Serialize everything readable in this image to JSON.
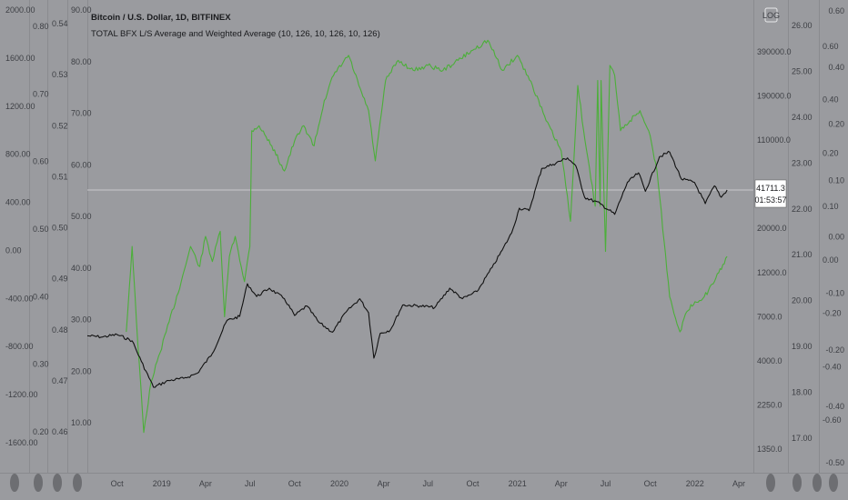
{
  "header": {
    "symbol_title": "Bitcoin / U.S. Dollar, 1D, BITFINEX",
    "indicator_title": "TOTAL BFX L/S Average and Weighted Average (10, 126, 10, 126, 10, 126)"
  },
  "log_badge": "LOG",
  "last_price": {
    "value": "41711.3",
    "countdown": "01:53:57"
  },
  "colors": {
    "background": "#9a9b9f",
    "ls_line": "#4caf3a",
    "price_line": "#111111",
    "reference_line": "#c9cacd"
  },
  "icons": {
    "scroll_handle": "pill-icon"
  },
  "left_axes": [
    {
      "labels": [
        "2000.00",
        "1600.00",
        "1200.00",
        "800.00",
        "400.00",
        "0.00",
        "-400.00",
        "-800.00",
        "-1200.00",
        "-1600.00"
      ]
    },
    {
      "labels": [
        "0.80",
        "0.70",
        "0.60",
        "0.50",
        "0.40",
        "0.30",
        "0.20"
      ]
    },
    {
      "labels": [
        "0.54",
        "0.53",
        "0.52",
        "0.51",
        "0.50",
        "0.49",
        "0.48",
        "0.47",
        "0.46"
      ]
    },
    {
      "labels": [
        "90.00",
        "80.00",
        "70.00",
        "60.00",
        "50.00",
        "40.00",
        "30.00",
        "20.00",
        "10.00"
      ]
    }
  ],
  "right_axes": [
    {
      "labels": [
        "390000.0",
        "190000.0",
        "110000.0",
        "60000.0",
        "20000.0",
        "12000.0",
        "7000.0",
        "4000.0",
        "2250.0",
        "1350.0"
      ]
    },
    {
      "labels": [
        "26.00",
        "25.00",
        "24.00",
        "23.00",
        "22.00",
        "21.00",
        "20.00",
        "19.00",
        "18.00",
        "17.00"
      ]
    },
    {
      "labels": [
        "0.60",
        "0.40",
        "0.20",
        "0.10",
        "0.00",
        "-0.20",
        "-0.40",
        "-0.60"
      ]
    },
    {
      "labels": [
        "0.60",
        "0.40",
        "0.20",
        "0.10",
        "0.00",
        "-0.10",
        "-0.20",
        "-0.40",
        "-0.50"
      ]
    }
  ],
  "chart_data": {
    "type": "line",
    "x_tick_labels": [
      "Oct",
      "2019",
      "Apr",
      "Jul",
      "Oct",
      "2020",
      "Apr",
      "Jul",
      "Oct",
      "2021",
      "Apr",
      "Jul",
      "Oct",
      "2022",
      "Apr"
    ],
    "x_range": [
      "2018-08-01",
      "2022-05-01"
    ],
    "y_scale": "log",
    "series": [
      {
        "axis": "price (log)",
        "color": "#111111",
        "ylim": [
          1100,
          480000
        ],
        "points": [
          [
            "2018-08-01",
            6400
          ],
          [
            "2018-09-01",
            6300
          ],
          [
            "2018-10-01",
            6500
          ],
          [
            "2018-11-01",
            6000
          ],
          [
            "2018-11-20",
            4600
          ],
          [
            "2018-12-15",
            3300
          ],
          [
            "2019-01-15",
            3600
          ],
          [
            "2019-02-15",
            3700
          ],
          [
            "2019-03-15",
            3950
          ],
          [
            "2019-04-15",
            5100
          ],
          [
            "2019-05-15",
            7800
          ],
          [
            "2019-06-10",
            8200
          ],
          [
            "2019-06-26",
            12500
          ],
          [
            "2019-07-15",
            10600
          ],
          [
            "2019-08-10",
            11800
          ],
          [
            "2019-09-10",
            10300
          ],
          [
            "2019-10-01",
            8300
          ],
          [
            "2019-10-26",
            9400
          ],
          [
            "2019-11-20",
            7600
          ],
          [
            "2019-12-18",
            6700
          ],
          [
            "2020-01-15",
            8700
          ],
          [
            "2020-02-12",
            10300
          ],
          [
            "2020-03-01",
            8600
          ],
          [
            "2020-03-12",
            4800
          ],
          [
            "2020-03-25",
            6600
          ],
          [
            "2020-04-15",
            6900
          ],
          [
            "2020-05-10",
            9500
          ],
          [
            "2020-06-15",
            9400
          ],
          [
            "2020-07-15",
            9200
          ],
          [
            "2020-08-15",
            11800
          ],
          [
            "2020-09-10",
            10300
          ],
          [
            "2020-10-10",
            11300
          ],
          [
            "2020-11-10",
            15400
          ],
          [
            "2020-12-01",
            19300
          ],
          [
            "2020-12-20",
            24000
          ],
          [
            "2021-01-05",
            33000
          ],
          [
            "2021-01-25",
            32000
          ],
          [
            "2021-02-20",
            55000
          ],
          [
            "2021-03-15",
            58000
          ],
          [
            "2021-04-14",
            63000
          ],
          [
            "2021-05-01",
            57000
          ],
          [
            "2021-05-19",
            38000
          ],
          [
            "2021-06-20",
            35000
          ],
          [
            "2021-07-20",
            30500
          ],
          [
            "2021-08-15",
            46000
          ],
          [
            "2021-09-07",
            52000
          ],
          [
            "2021-09-21",
            41000
          ],
          [
            "2021-10-20",
            64000
          ],
          [
            "2021-11-10",
            68000
          ],
          [
            "2021-12-04",
            48000
          ],
          [
            "2021-12-31",
            46000
          ],
          [
            "2022-01-22",
            35000
          ],
          [
            "2022-02-10",
            44000
          ],
          [
            "2022-02-24",
            38000
          ],
          [
            "2022-03-08",
            41711
          ]
        ]
      },
      {
        "axis": "long/short average",
        "color": "#4caf3a",
        "ylim": [
          2,
          96
        ],
        "points": [
          [
            "2018-10-20",
            30
          ],
          [
            "2018-11-01",
            47
          ],
          [
            "2018-11-10",
            32
          ],
          [
            "2018-11-25",
            10
          ],
          [
            "2018-12-10",
            20
          ],
          [
            "2019-01-10",
            30
          ],
          [
            "2019-02-10",
            40
          ],
          [
            "2019-03-01",
            47
          ],
          [
            "2019-03-20",
            43
          ],
          [
            "2019-04-01",
            49
          ],
          [
            "2019-04-15",
            44
          ],
          [
            "2019-05-01",
            50
          ],
          [
            "2019-05-10",
            33
          ],
          [
            "2019-05-20",
            45
          ],
          [
            "2019-06-01",
            49
          ],
          [
            "2019-06-20",
            40
          ],
          [
            "2019-07-01",
            47
          ],
          [
            "2019-07-05",
            70
          ],
          [
            "2019-07-20",
            71
          ],
          [
            "2019-08-15",
            67
          ],
          [
            "2019-09-10",
            62
          ],
          [
            "2019-10-01",
            68
          ],
          [
            "2019-10-20",
            71
          ],
          [
            "2019-11-10",
            67
          ],
          [
            "2019-12-01",
            76
          ],
          [
            "2019-12-20",
            81
          ],
          [
            "2020-01-20",
            85
          ],
          [
            "2020-02-10",
            79
          ],
          [
            "2020-03-01",
            74
          ],
          [
            "2020-03-15",
            64
          ],
          [
            "2020-04-05",
            80
          ],
          [
            "2020-05-01",
            84
          ],
          [
            "2020-06-01",
            82
          ],
          [
            "2020-07-01",
            83
          ],
          [
            "2020-08-01",
            82
          ],
          [
            "2020-09-01",
            84
          ],
          [
            "2020-10-01",
            86
          ],
          [
            "2020-11-01",
            88
          ],
          [
            "2020-12-01",
            82
          ],
          [
            "2021-01-01",
            85
          ],
          [
            "2021-02-01",
            79
          ],
          [
            "2021-03-01",
            72
          ],
          [
            "2021-04-01",
            66
          ],
          [
            "2021-04-20",
            52
          ],
          [
            "2021-05-05",
            79
          ],
          [
            "2021-05-20",
            68
          ],
          [
            "2021-06-10",
            55
          ],
          [
            "2021-06-15",
            80
          ],
          [
            "2021-06-20",
            55
          ],
          [
            "2021-06-22",
            80
          ],
          [
            "2021-07-01",
            46
          ],
          [
            "2021-07-10",
            83
          ],
          [
            "2021-07-20",
            81
          ],
          [
            "2021-08-01",
            70
          ],
          [
            "2021-08-20",
            72
          ],
          [
            "2021-09-10",
            74
          ],
          [
            "2021-10-01",
            69
          ],
          [
            "2021-10-15",
            62
          ],
          [
            "2021-11-10",
            37
          ],
          [
            "2021-12-01",
            30
          ],
          [
            "2021-12-15",
            34
          ],
          [
            "2022-01-01",
            36
          ],
          [
            "2022-01-20",
            37
          ],
          [
            "2022-02-10",
            40
          ],
          [
            "2022-03-08",
            45
          ]
        ]
      }
    ],
    "reference_line_value": 41711.3
  }
}
